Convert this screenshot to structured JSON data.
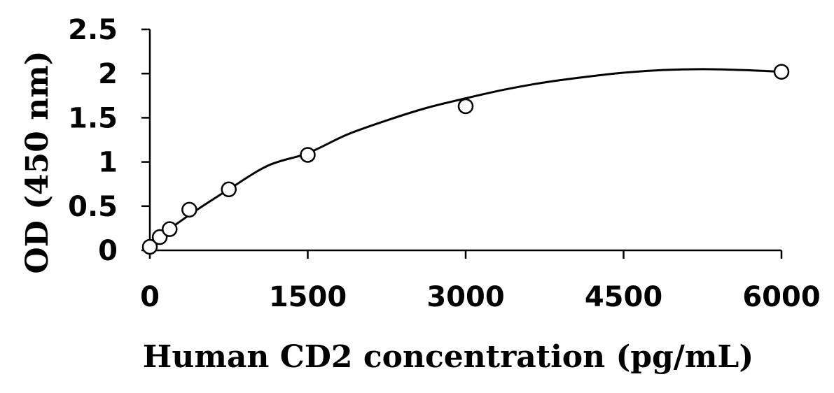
{
  "chart_data": {
    "type": "scatter",
    "title": "",
    "xlabel": "Human CD2 concentration (pg/mL)",
    "ylabel": "OD (450 nm)",
    "xlim": [
      0,
      6000
    ],
    "ylim": [
      0,
      2.5
    ],
    "x_ticks": [
      "0",
      "1500",
      "3000",
      "4500",
      "6000"
    ],
    "y_ticks": [
      "0",
      "0.5",
      "1",
      "1.5",
      "2",
      "2.5"
    ],
    "x_tick_values": [
      0,
      1500,
      3000,
      4500,
      6000
    ],
    "y_tick_values": [
      0,
      0.5,
      1,
      1.5,
      2,
      2.5
    ],
    "grid": false,
    "legend": "none",
    "marker": "open-circle",
    "series": [
      {
        "x": [
          0,
          94,
          188,
          375,
          750,
          1500,
          3000,
          6000
        ],
        "y": [
          0.04,
          0.15,
          0.24,
          0.46,
          0.69,
          1.08,
          1.63,
          2.02
        ]
      }
    ],
    "trendline": {
      "type": "polynomial",
      "x": [
        0,
        375,
        750,
        1125,
        1500,
        1875,
        2250,
        2625,
        3000,
        3375,
        3750,
        4125,
        4500,
        4875,
        5250,
        5625,
        6000
      ],
      "y": [
        0.08,
        0.4,
        0.69,
        0.96,
        1.1,
        1.31,
        1.47,
        1.61,
        1.72,
        1.82,
        1.9,
        1.96,
        2.01,
        2.04,
        2.05,
        2.04,
        2.02
      ]
    },
    "colors": {
      "axis": "#000000",
      "marker_stroke": "#000000",
      "marker_fill": "#ffffff",
      "line": "#000000"
    }
  }
}
